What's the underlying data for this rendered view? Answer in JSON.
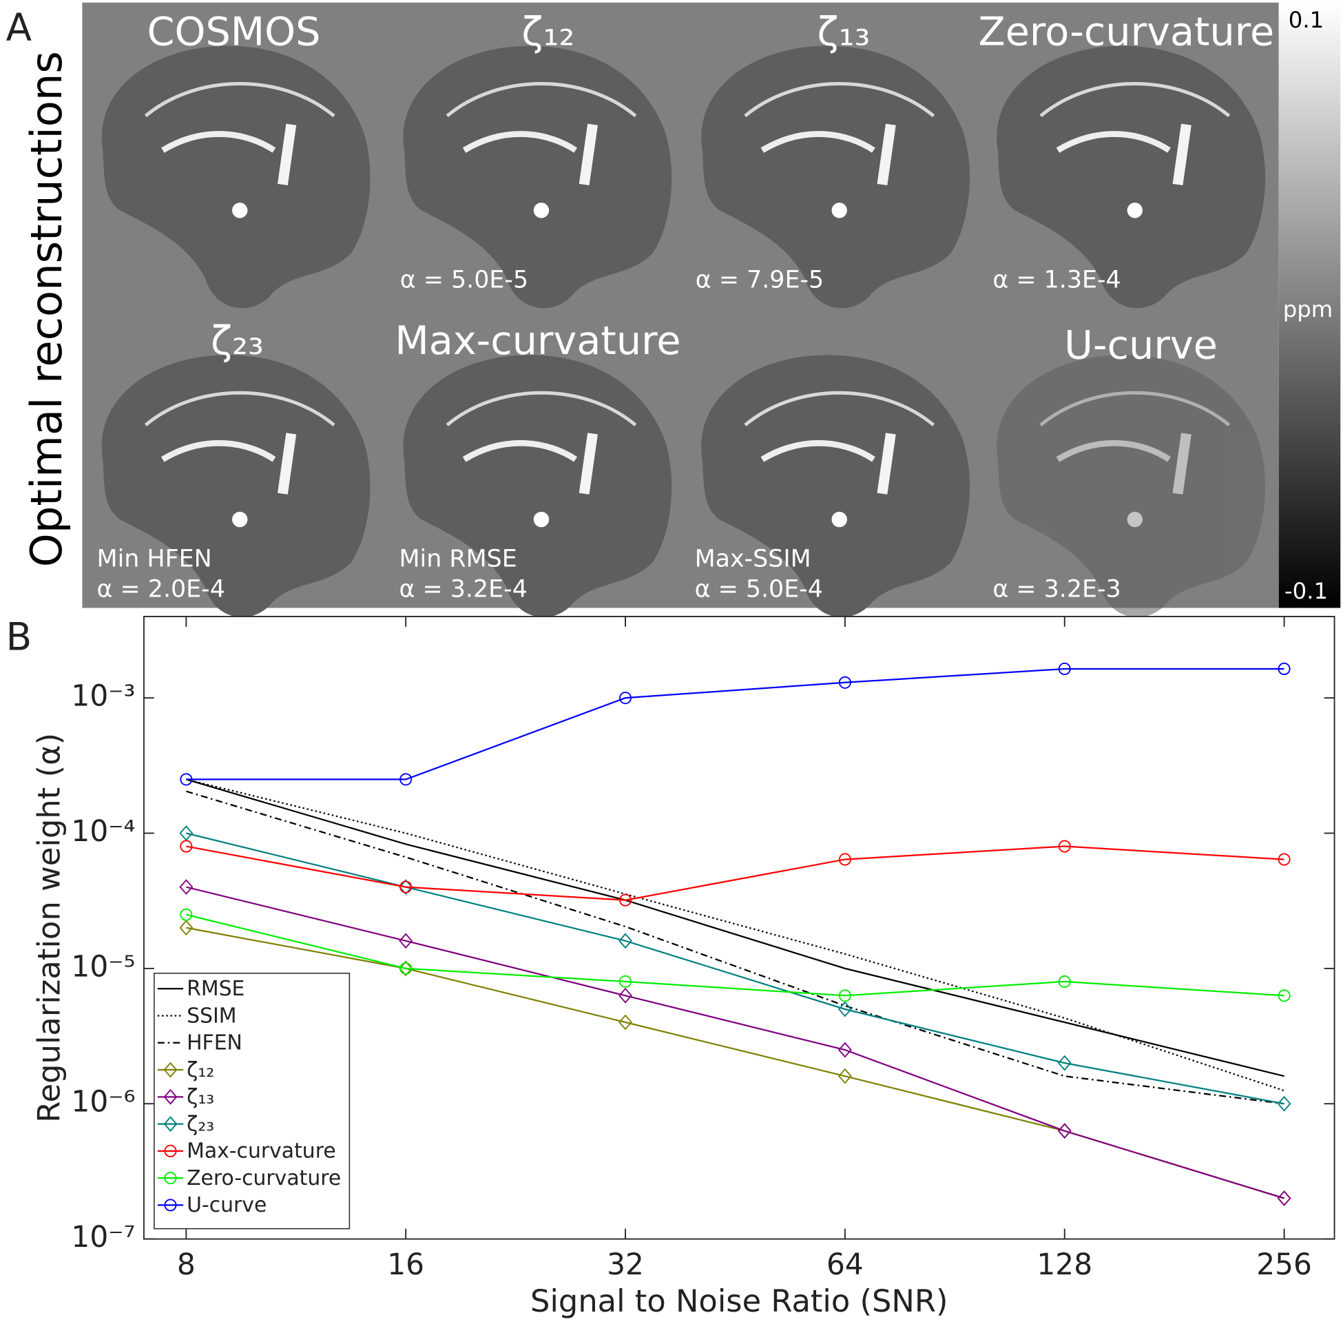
{
  "panel_a": {
    "label": "A",
    "ylabel": "Optimal reconstructions",
    "colorbar": {
      "max": "0.1",
      "unit": "ppm",
      "min": "-0.1"
    },
    "images": [
      {
        "title": "COSMOS"
      },
      {
        "title": "ζ₁₂",
        "alpha": "α = 5.0E-5"
      },
      {
        "title": "ζ₁₃",
        "alpha": "α = 7.9E-5"
      },
      {
        "title": "Zero-curvature",
        "alpha": "α = 1.3E-4"
      },
      {
        "title": "ζ₂₃",
        "note": "Min HFEN",
        "alpha": "α = 2.0E-4"
      },
      {
        "title": "Max-curvature",
        "note": "Min RMSE",
        "alpha": "α = 3.2E-4"
      },
      {
        "note": "Max-SSIM",
        "alpha": "α = 5.0E-4"
      },
      {
        "title": "U-curve",
        "alpha": "α = 3.2E-3"
      }
    ]
  },
  "chart_data": {
    "type": "line",
    "panel_label": "B",
    "xlabel": "Signal to Noise Ratio (SNR)",
    "ylabel": "Regularization weight (α)",
    "x": [
      8,
      16,
      32,
      64,
      128,
      256
    ],
    "xscale": "log",
    "yscale": "log",
    "xlim": [
      7,
      300
    ],
    "ylim": [
      1e-07,
      0.004
    ],
    "xticks": [
      8,
      16,
      32,
      64,
      128,
      256
    ],
    "yticks": [
      {
        "value": 1e-07,
        "label": "10⁻⁷"
      },
      {
        "value": 1e-06,
        "label": "10⁻⁶"
      },
      {
        "value": 1e-05,
        "label": "10⁻⁵"
      },
      {
        "value": 0.0001,
        "label": "10⁻⁴"
      },
      {
        "value": 0.001,
        "label": "10⁻³"
      }
    ],
    "legend": "lower left",
    "series": [
      {
        "name": "RMSE",
        "color": "#000000",
        "dash": "solid",
        "marker": "none",
        "values": [
          0.00025,
          8.3e-05,
          3.2e-05,
          1e-05,
          4e-06,
          1.6e-06
        ]
      },
      {
        "name": "SSIM",
        "color": "#000000",
        "dash": "dotted",
        "marker": "none",
        "values": [
          0.00025,
          0.0001,
          3.55e-05,
          1.28e-05,
          4.3e-06,
          1.25e-06
        ]
      },
      {
        "name": "HFEN",
        "color": "#000000",
        "dash": "dashdot",
        "marker": "none",
        "values": [
          0.000204,
          6.65e-05,
          2.04e-05,
          5.3e-06,
          1.6e-06,
          1e-06
        ]
      },
      {
        "name": "ζ₁₂",
        "color": "#808000",
        "dash": "solid",
        "marker": "diamond",
        "values": [
          2e-05,
          1e-05,
          4e-06,
          1.6e-06,
          6.3e-07,
          2e-07
        ]
      },
      {
        "name": "ζ₁₃",
        "color": "#800080",
        "dash": "solid",
        "marker": "diamond",
        "values": [
          4e-05,
          1.6e-05,
          6.3e-06,
          2.5e-06,
          6.3e-07,
          2e-07
        ]
      },
      {
        "name": "ζ₂₃",
        "color": "#008080",
        "dash": "solid",
        "marker": "diamond",
        "values": [
          0.0001,
          4e-05,
          1.6e-05,
          5e-06,
          2e-06,
          1e-06
        ]
      },
      {
        "name": "Max-curvature",
        "color": "#ff0000",
        "dash": "solid",
        "marker": "circle",
        "values": [
          8e-05,
          4e-05,
          3.2e-05,
          6.4e-05,
          8e-05,
          6.4e-05
        ]
      },
      {
        "name": "Zero-curvature",
        "color": "#00ee00",
        "dash": "solid",
        "marker": "circle",
        "values": [
          2.5e-05,
          1e-05,
          8e-06,
          6.3e-06,
          8e-06,
          6.3e-06
        ]
      },
      {
        "name": "U-curve",
        "color": "#0000ff",
        "dash": "solid",
        "marker": "circle",
        "values": [
          0.00025,
          0.00025,
          0.001,
          0.0013,
          0.00164,
          0.00164
        ]
      }
    ]
  }
}
